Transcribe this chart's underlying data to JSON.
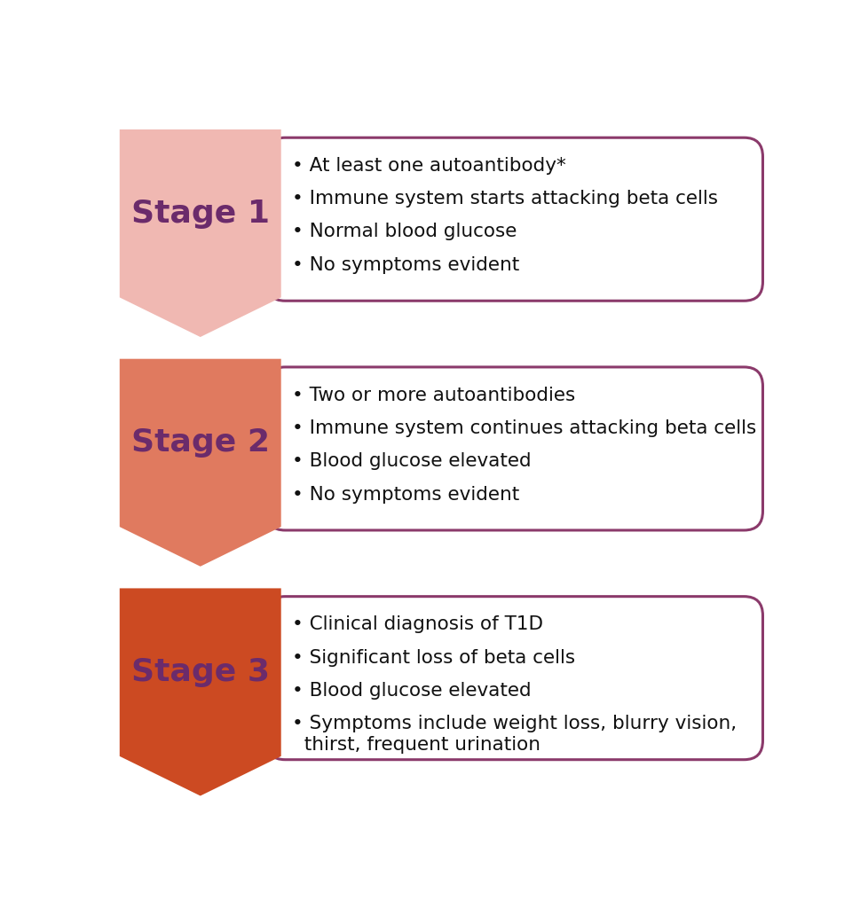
{
  "background_color": "#ffffff",
  "stages": [
    {
      "label": "Stage 1",
      "arrow_color": "#f0b8b2",
      "box_outline": "#8b3a6b",
      "label_color": "#6b2b6b",
      "bullets": [
        "At least one autoantibody*",
        "Immune system starts attacking beta cells",
        "Normal blood glucose",
        "No symptoms evident"
      ]
    },
    {
      "label": "Stage 2",
      "arrow_color": "#e07a5f",
      "box_outline": "#8b3a6b",
      "label_color": "#6b2b6b",
      "bullets": [
        "Two or more autoantibodies",
        "Immune system continues attacking beta cells",
        "Blood glucose elevated",
        "No symptoms evident"
      ]
    },
    {
      "label": "Stage 3",
      "arrow_color": "#cc4a22",
      "box_outline": "#8b3a6b",
      "label_color": "#6b2b6b",
      "bullets": [
        "Clinical diagnosis of T1D",
        "Significant loss of beta cells",
        "Blood glucose elevated",
        "Symptoms include weight loss, blurry vision,\n  thirst, frequent urination"
      ]
    }
  ],
  "stage_fontsize": 26,
  "bullet_fontsize": 15.5,
  "fig_width": 9.7,
  "fig_height": 10.24
}
